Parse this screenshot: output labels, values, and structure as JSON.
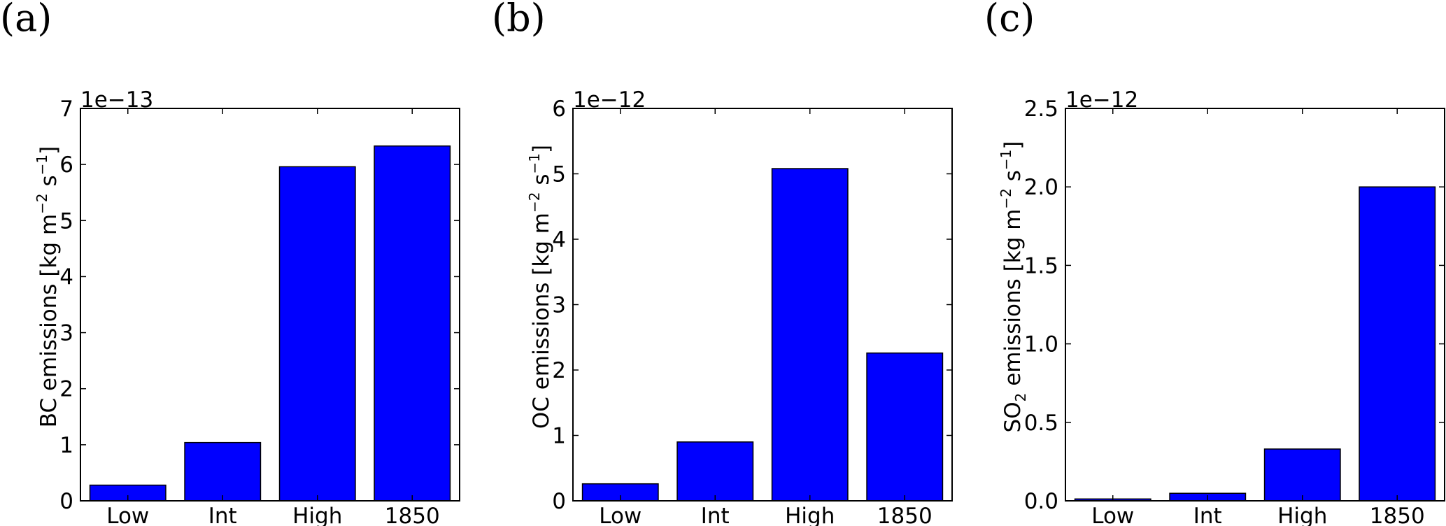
{
  "chart_data": [
    {
      "type": "bar",
      "panel_label": "(a)",
      "categories": [
        "Low",
        "Int",
        "High",
        "1850"
      ],
      "values": [
        2.8e-14,
        1.04e-13,
        5.96e-13,
        6.33e-13
      ],
      "scale_label": "1e−13",
      "scale": 1e-13,
      "ylabel_main": "BC emissions [kg m",
      "ylabel_exp1": "−2",
      "ylabel_mid": " s",
      "ylabel_exp2": "−1",
      "ylabel_end": "]",
      "ylim": [
        0,
        7e-13
      ],
      "yticks": [
        0,
        1,
        2,
        3,
        4,
        5,
        6,
        7
      ],
      "ytick_labels": [
        "0",
        "1",
        "2",
        "3",
        "4",
        "5",
        "6",
        "7"
      ],
      "grid": false,
      "bar_color": "#0000ff"
    },
    {
      "type": "bar",
      "panel_label": "(b)",
      "categories": [
        "Low",
        "Int",
        "High",
        "1850"
      ],
      "values": [
        2.6e-13,
        9e-13,
        5.08e-12,
        2.26e-12
      ],
      "scale_label": "1e−12",
      "scale": 1e-12,
      "ylabel_main": "OC emissions [kg m",
      "ylabel_exp1": "−2",
      "ylabel_mid": " s",
      "ylabel_exp2": "−1",
      "ylabel_end": "]",
      "ylim": [
        0,
        6e-12
      ],
      "yticks": [
        0,
        1,
        2,
        3,
        4,
        5,
        6
      ],
      "ytick_labels": [
        "0",
        "1",
        "2",
        "3",
        "4",
        "5",
        "6"
      ],
      "grid": false,
      "bar_color": "#0000ff"
    },
    {
      "type": "bar",
      "panel_label": "(c)",
      "categories": [
        "Low",
        "Int",
        "High",
        "1850"
      ],
      "values": [
        1.2e-14,
        4.8e-14,
        3.3e-13,
        2e-12
      ],
      "scale_label": "1e−12",
      "scale": 1e-12,
      "ylabel_main": "SO",
      "ylabel_sub": "2",
      "ylabel_rest": " emissions [kg m",
      "ylabel_exp1": "−2",
      "ylabel_mid": " s",
      "ylabel_exp2": "−1",
      "ylabel_end": "]",
      "ylim": [
        0,
        2.5e-12
      ],
      "yticks": [
        0,
        0.5,
        1.0,
        1.5,
        2.0,
        2.5
      ],
      "ytick_labels": [
        "0.0",
        "0.5",
        "1.0",
        "1.5",
        "2.0",
        "2.5"
      ],
      "grid": false,
      "bar_color": "#0000ff"
    }
  ]
}
